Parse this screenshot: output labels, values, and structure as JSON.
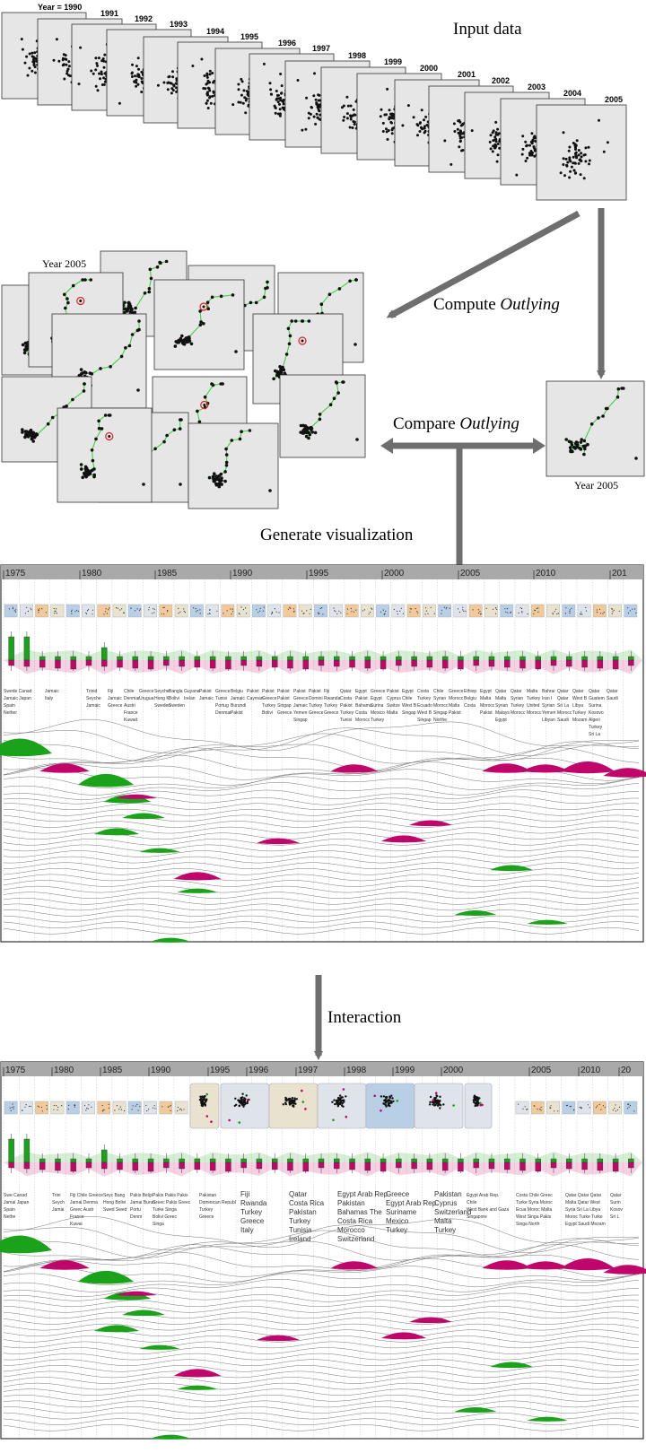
{
  "input_section": {
    "title": "Input data",
    "years": [
      "Year = 1990",
      "1991",
      "1992",
      "1993",
      "1994",
      "1995",
      "1996",
      "1997",
      "1998",
      "1999",
      "2000",
      "2001",
      "2002",
      "2003",
      "2004",
      "2005"
    ]
  },
  "steps": {
    "compute_prefix": "Compute ",
    "compute_term": "Outlying",
    "compare_prefix": "Compare ",
    "compare_term": "Outlying",
    "generate": "Generate visualization",
    "interaction": "Interaction"
  },
  "mst_section": {
    "left_label": "Year 2005",
    "right_label": "Year 2005"
  },
  "colors": {
    "green": "#1aa31a",
    "magenta": "#c0066a",
    "panel": "#e6e6e6",
    "axis_bar": "#a9a9a9",
    "mst_edge": "#3fd23f"
  },
  "viz_top": {
    "ticks": [
      "1975",
      "1980",
      "1985",
      "1990",
      "1995",
      "2000",
      "2005",
      "2010",
      "201"
    ],
    "labels_green": [
      {
        "x": 4,
        "lines": [
          "Swede Canad",
          "Jamaic Japan",
          "Spain",
          "Nether"
        ]
      },
      {
        "x": 96,
        "lines": [
          "Trinid",
          "Seyche",
          "Jamaic"
        ]
      }
    ],
    "labels_dark": [
      {
        "x": 50,
        "lines": [
          "Jamaic",
          "Italy"
        ]
      },
      {
        "x": 120,
        "lines": [
          "Fiji",
          "Jamaic",
          "Greece"
        ]
      },
      {
        "x": 138,
        "lines": [
          "Chile",
          "Denmar",
          "Austri",
          "France",
          "Kuwait"
        ]
      },
      {
        "x": 155,
        "lines": [
          "Greece",
          "Urugua"
        ]
      },
      {
        "x": 172,
        "lines": [
          "Seyche",
          "Hong K",
          "Sweden"
        ]
      },
      {
        "x": 188,
        "lines": [
          "Bangla",
          "Bolivi",
          "Sweden"
        ]
      },
      {
        "x": 205,
        "lines": [
          "Guyana",
          "Irelan"
        ]
      },
      {
        "x": 222,
        "lines": [
          "Pakist",
          "Jamaic"
        ]
      },
      {
        "x": 240,
        "lines": [
          "Greece",
          "Tunisi",
          "Portug",
          "Denmar"
        ]
      },
      {
        "x": 257,
        "lines": [
          "Belgiu",
          "Jamaic",
          "Burundi",
          "Pakist"
        ]
      },
      {
        "x": 275,
        "lines": [
          "Pakist",
          "Cayman"
        ]
      },
      {
        "x": 292,
        "lines": [
          "Pakist",
          "Greece",
          "Turkey",
          "Bolivi"
        ]
      },
      {
        "x": 309,
        "lines": [
          "Pakist",
          "Pakist",
          "Singap",
          "Greece"
        ]
      },
      {
        "x": 327,
        "lines": [
          "Pakist",
          "Greece",
          "Jamaic",
          "Yemen",
          "Singap"
        ]
      },
      {
        "x": 344,
        "lines": [
          "Pakist",
          "Domini",
          "Turkey",
          "Greece"
        ]
      },
      {
        "x": 361,
        "lines": [
          "Fiji",
          "Rwanda",
          "Turkey",
          "Greece"
        ]
      },
      {
        "x": 379,
        "lines": [
          "Qatar",
          "Costa",
          "Pakist",
          "Turkey",
          "Tunisi"
        ]
      },
      {
        "x": 396,
        "lines": [
          "Egypt",
          "Pakist",
          "Bahama",
          "Costa",
          "Morocc"
        ]
      },
      {
        "x": 413,
        "lines": [
          "Greece",
          "Egypt",
          "Surina",
          "Mexico",
          "Turkey"
        ]
      },
      {
        "x": 431,
        "lines": [
          "Pakist",
          "Cyprus",
          "Switze",
          "Malta"
        ]
      },
      {
        "x": 448,
        "lines": [
          "Egypt",
          "Chile",
          "West B",
          "Singap"
        ]
      },
      {
        "x": 465,
        "lines": [
          "Costa",
          "Turkey",
          "Ecuado",
          "West B",
          "Singap"
        ]
      },
      {
        "x": 483,
        "lines": [
          "Chile",
          "Syrian",
          "Morocc",
          "Singap",
          "Northe"
        ]
      },
      {
        "x": 500,
        "lines": [
          "Greece",
          "Morocc",
          "Malta",
          "Pakist"
        ]
      },
      {
        "x": 517,
        "lines": [
          "Ethiop",
          "Belgiu",
          "Costa"
        ]
      },
      {
        "x": 535,
        "lines": [
          "Egypt",
          "Malta",
          "Morocc",
          "Pakist"
        ]
      },
      {
        "x": 552,
        "lines": [
          "Qatar",
          "Malta",
          "Syrian",
          "Malays",
          "Egypt"
        ]
      },
      {
        "x": 569,
        "lines": [
          "Qatar",
          "Syrian",
          "Turkey",
          "Morocc"
        ]
      },
      {
        "x": 587,
        "lines": [
          "Malta",
          "Turkey",
          "United",
          "Morocc"
        ]
      },
      {
        "x": 604,
        "lines": [
          "Bahrai",
          "Iran I",
          "Syrian",
          "Yemen",
          "Libyan"
        ]
      },
      {
        "x": 621,
        "lines": [
          "Qatar",
          "Qatar",
          "Sri La",
          "Morocc",
          "Saudi"
        ]
      },
      {
        "x": 638,
        "lines": [
          "Qatar",
          "West B",
          "Libya",
          "Turkey",
          "Mozam"
        ]
      },
      {
        "x": 656,
        "lines": [
          "Qatar",
          "Guatem",
          "Surina",
          "Kosovo",
          "Algeri",
          "Turkey",
          "Sri La"
        ]
      },
      {
        "x": 676,
        "lines": [
          "Qatar",
          "Saudi"
        ]
      }
    ]
  },
  "viz_bottom": {
    "ticks": [
      "1975",
      "1980",
      "1985",
      "1990",
      "1995",
      "1996",
      "1997",
      "1998",
      "1999",
      "2000",
      "2005",
      "2010",
      "20"
    ],
    "labels_small": [
      {
        "x": 4,
        "lines": [
          "Swe Canad",
          "Jamai Japan",
          "Spain",
          "Nethe"
        ]
      },
      {
        "x": 58,
        "lines": [
          "Trini",
          "Seych",
          "Jamai"
        ]
      },
      {
        "x": 78,
        "lines": [
          "Fiji Chile Greece",
          "Jamai Denma",
          "Greec Austr",
          "France",
          "Kuwai"
        ]
      },
      {
        "x": 115,
        "lines": [
          "Seyc Bang",
          "Hong Bolivi",
          "Swed Swed"
        ]
      },
      {
        "x": 145,
        "lines": [
          "Pakis Belgi",
          "Jamai Burun",
          "Portu",
          "Denm"
        ]
      },
      {
        "x": 170,
        "lines": [
          "Pakis Pakis Pakis",
          "Greec Pakis Greec",
          "Turke Singa",
          "Bolivi Greec",
          "Singa"
        ]
      },
      {
        "x": 222,
        "lines": [
          "Pakistan",
          "Dominican Republ",
          "Turkey",
          "Greece"
        ]
      },
      {
        "x": 520,
        "lines": [
          "Egypt Arab Rep.",
          "Chile",
          "West Bank and Gaza",
          "Singapore"
        ]
      },
      {
        "x": 575,
        "lines": [
          "Costa Chile Greec",
          "Turke Syria Moroc",
          "Ecua Moroc Malta",
          "West Singa Pakis",
          "Singa North"
        ]
      },
      {
        "x": 630,
        "lines": [
          "Qatar Qatar Qatar",
          "Malta Qatar West",
          "Syria Sri La Libya",
          "Moroc Turke Turke",
          "Egypt Saudi Mozam"
        ]
      },
      {
        "x": 680,
        "lines": [
          "Qatar",
          "Surin",
          "Kosov",
          "Sri L"
        ]
      }
    ],
    "labels_big": [
      {
        "x": 268,
        "lines": [
          "Fiji",
          "Rwanda",
          "Turkey",
          "Greece",
          "Italy"
        ]
      },
      {
        "x": 322,
        "lines": [
          "Qatar",
          "Costa Rica",
          "Pakistan",
          "Turkey",
          "Tunisia",
          "Ireland"
        ]
      },
      {
        "x": 376,
        "lines": [
          "Egypt Arab Rep.",
          "Pakistan",
          "Bahamas The",
          "Costa Rica",
          "Morocco",
          "Switzerland"
        ]
      },
      {
        "x": 430,
        "lines": [
          "Greece",
          "Egypt Arab Rep.",
          "Suriname",
          "Mexico",
          "Turkey"
        ]
      },
      {
        "x": 484,
        "lines": [
          "Pakistan",
          "Cyprus",
          "Switzerland",
          "Malta",
          "Turkey"
        ]
      }
    ]
  }
}
